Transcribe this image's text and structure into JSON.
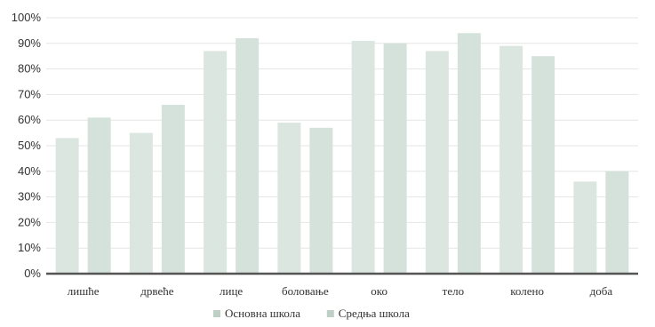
{
  "chart_data": {
    "type": "bar",
    "title": "",
    "xlabel": "",
    "ylabel": "",
    "ylim": [
      0,
      100
    ],
    "y_ticks": [
      0,
      10,
      20,
      30,
      40,
      50,
      60,
      70,
      80,
      90,
      100
    ],
    "y_tick_suffix": "%",
    "grid": true,
    "legend_position": "bottom",
    "categories": [
      "лишће",
      "дрвеће",
      "лице",
      "боловање",
      "око",
      "тело",
      "колено",
      "доба"
    ],
    "series": [
      {
        "name": "Основна школа",
        "color": "#dce6e0",
        "values": [
          53,
          55,
          87,
          59,
          91,
          87,
          89,
          36
        ]
      },
      {
        "name": "Средња школа",
        "color": "#d5e2db",
        "values": [
          61,
          66,
          92,
          57,
          90,
          94,
          85,
          40
        ]
      }
    ]
  }
}
